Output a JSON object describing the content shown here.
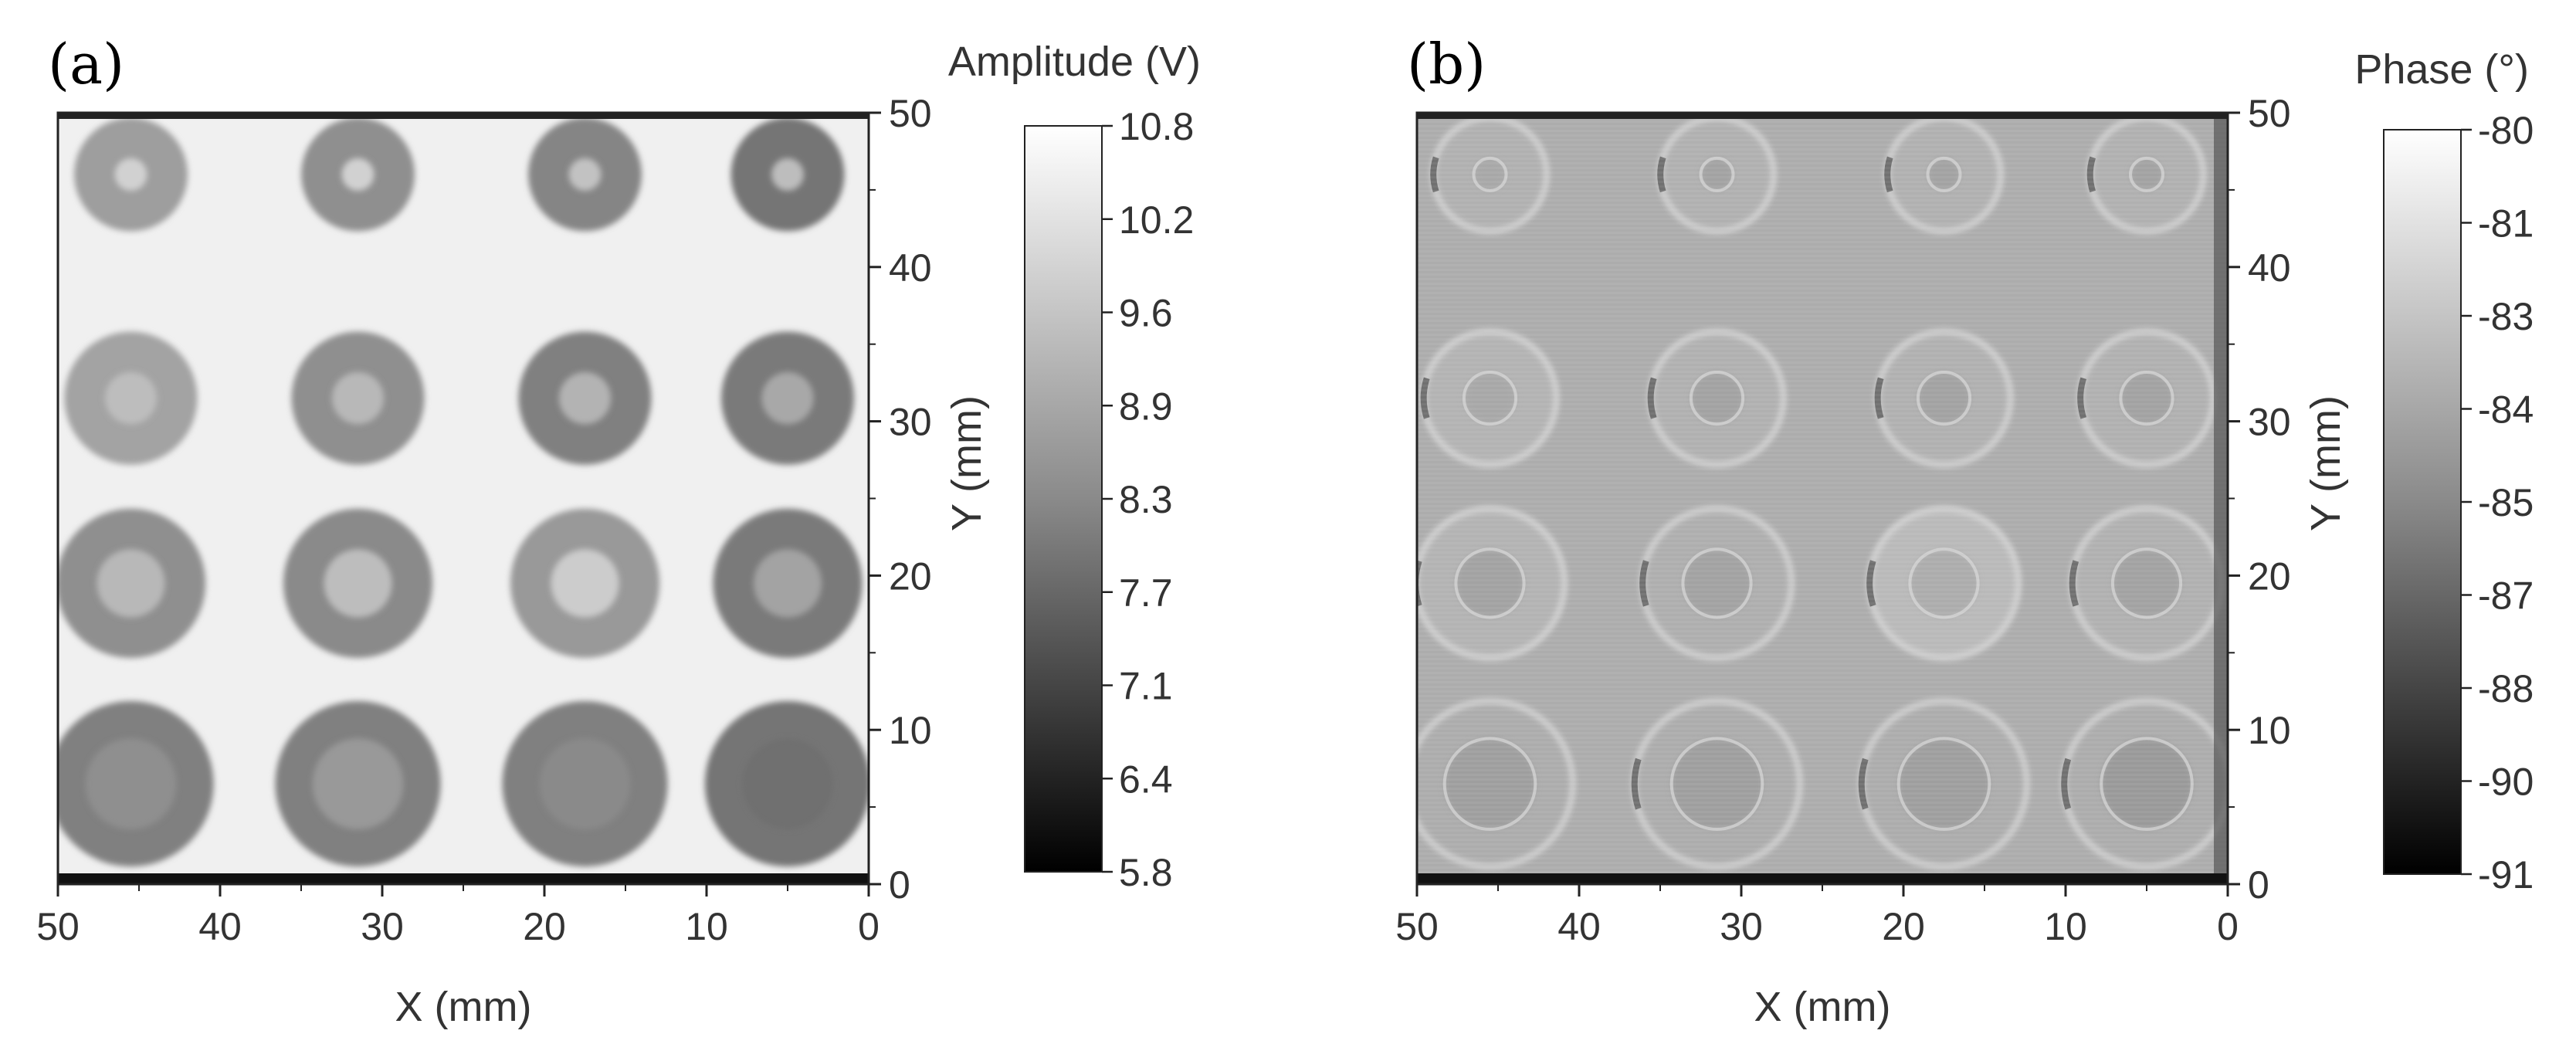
{
  "chart_data": [
    {
      "type": "heatmap",
      "panel_label": "(a)",
      "xlabel": "X (mm)",
      "ylabel": "Y (mm)",
      "xlim": [
        50,
        0
      ],
      "ylim": [
        0,
        50
      ],
      "x_ticks": [
        50,
        40,
        30,
        20,
        10,
        0
      ],
      "y_ticks": [
        0,
        10,
        20,
        30,
        40,
        50
      ],
      "colorbar": {
        "title": "Amplitude (V)",
        "ticks": [
          "10.8",
          "10.2",
          "9.6",
          "8.9",
          "8.3",
          "7.7",
          "7.1",
          "6.4",
          "5.8"
        ],
        "range": [
          5.8,
          10.8
        ],
        "colormap": "grayscale"
      },
      "background_value": 10.5,
      "defect_grid": {
        "x_centers": [
          45.5,
          31.5,
          17.5,
          5.0
        ],
        "y_centers": [
          46,
          31.5,
          19.5,
          6.5
        ],
        "outer_radius_mm": [
          3.5,
          4.1,
          4.6,
          5.1
        ],
        "inner_radius_mm": [
          1.0,
          1.6,
          2.1,
          2.8
        ]
      },
      "ring_values": [
        [
          8.9,
          8.6,
          8.4,
          8.1
        ],
        [
          9.0,
          8.6,
          8.3,
          8.2
        ],
        [
          8.6,
          8.5,
          8.8,
          8.2
        ],
        [
          8.3,
          8.3,
          8.3,
          8.1
        ]
      ],
      "core_values": [
        [
          9.9,
          9.9,
          9.6,
          9.5
        ],
        [
          9.5,
          9.4,
          9.3,
          9.1
        ],
        [
          9.4,
          9.5,
          9.8,
          9.0
        ],
        [
          8.6,
          8.8,
          8.5,
          8.0
        ]
      ]
    },
    {
      "type": "heatmap",
      "panel_label": "(b)",
      "xlabel": "X (mm)",
      "ylabel": "Y (mm)",
      "xlim": [
        50,
        0
      ],
      "ylim": [
        0,
        50
      ],
      "x_ticks": [
        50,
        40,
        30,
        20,
        10,
        0
      ],
      "y_ticks": [
        0,
        10,
        20,
        30,
        40,
        50
      ],
      "colorbar": {
        "title": "Phase (°)",
        "ticks": [
          "-80",
          "-81",
          "-83",
          "-84",
          "-85",
          "-87",
          "-88",
          "-90",
          "-91"
        ],
        "range": [
          -91,
          -80
        ],
        "colormap": "grayscale"
      },
      "background_value": -83.6,
      "defect_grid": {
        "x_centers": [
          45.5,
          31.5,
          17.5,
          5.0
        ],
        "y_centers": [
          46,
          31.5,
          19.5,
          6.5
        ],
        "outer_radius_mm": [
          3.5,
          4.1,
          4.6,
          5.1
        ],
        "inner_radius_mm": [
          1.0,
          1.6,
          2.1,
          2.8
        ]
      },
      "ring_values": [
        [
          -83.4,
          -83.4,
          -83.4,
          -83.4
        ],
        [
          -83.3,
          -83.4,
          -83.4,
          -83.4
        ],
        [
          -83.3,
          -83.5,
          -83.0,
          -83.4
        ],
        [
          -83.6,
          -83.6,
          -83.6,
          -83.6
        ]
      ],
      "core_values": [
        [
          -83.8,
          -84.0,
          -84.0,
          -84.0
        ],
        [
          -83.8,
          -84.0,
          -84.0,
          -84.0
        ],
        [
          -84.0,
          -84.0,
          -83.6,
          -84.0
        ],
        [
          -84.2,
          -84.2,
          -84.2,
          -84.4
        ]
      ]
    }
  ]
}
